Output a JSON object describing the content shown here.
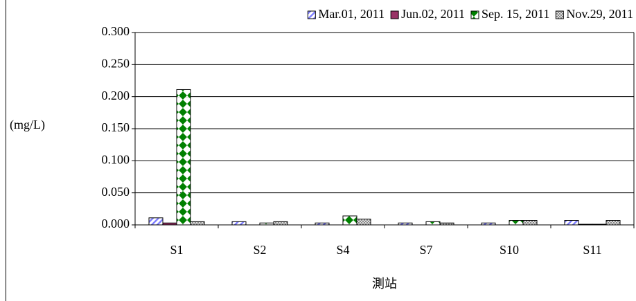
{
  "chart_data": {
    "type": "bar",
    "y_label": "(mg/L)",
    "x_label": "測站",
    "categories": [
      "S1",
      "S2",
      "S4",
      "S7",
      "S10",
      "S11"
    ],
    "series": [
      {
        "name": "Mar.01, 2011",
        "color": "#8080ff",
        "values": [
          0.011,
          0.005,
          0.003,
          0.003,
          0.003,
          0.007
        ]
      },
      {
        "name": "Jun.02, 2011",
        "color": "#993366",
        "values": [
          0.003,
          0,
          0,
          0,
          0,
          0.001
        ]
      },
      {
        "name": "Sep. 15, 2011",
        "color": "#008000",
        "values": [
          0.211,
          0.003,
          0.014,
          0.005,
          0.007,
          0.001
        ]
      },
      {
        "name": "Nov.29, 2011",
        "color": "#808080",
        "values": [
          0.005,
          0.005,
          0.009,
          0.003,
          0.007,
          0.007
        ]
      }
    ],
    "ylim": [
      0,
      0.3
    ],
    "yticks": [
      {
        "value": 0,
        "label": "0.000"
      },
      {
        "value": 0.05,
        "label": "0.050"
      },
      {
        "value": 0.1,
        "label": "0.100"
      },
      {
        "value": 0.15,
        "label": "0.150"
      },
      {
        "value": 0.2,
        "label": "0.200"
      },
      {
        "value": 0.25,
        "label": "0.250"
      },
      {
        "value": 0.3,
        "label": "0.300"
      }
    ],
    "grid": true
  }
}
